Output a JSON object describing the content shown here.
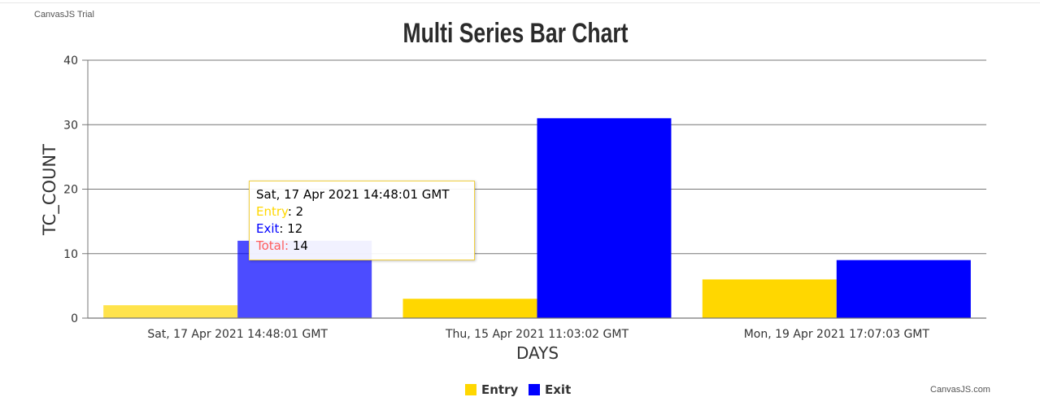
{
  "watermark": "CanvasJS Trial",
  "credit": "CanvasJS.com",
  "chart_data": {
    "type": "bar",
    "title": "Multi Series Bar Chart",
    "xlabel": "DAYS",
    "ylabel": "TC_COUNT",
    "ylim": [
      0,
      40
    ],
    "yticks": [
      0,
      10,
      20,
      30,
      40
    ],
    "grid": true,
    "legend_position": "bottom",
    "categories": [
      "Sat, 17 Apr 2021 14:48:01 GMT",
      "Thu, 15 Apr 2021 11:03:02 GMT",
      "Mon, 19 Apr 2021 17:07:03 GMT"
    ],
    "series": [
      {
        "name": "Entry",
        "color": "#ffd700",
        "values": [
          2,
          3,
          6
        ]
      },
      {
        "name": "Exit",
        "color": "#0000ff",
        "values": [
          12,
          31,
          9
        ]
      }
    ]
  },
  "tooltip": {
    "header": "Sat, 17 Apr 2021 14:48:01 GMT",
    "entry_label": "Entry",
    "entry_value": "2",
    "exit_label": "Exit",
    "exit_value": "12",
    "total_label": "Total:",
    "total_value": "14",
    "colors": {
      "entry": "#ffd700",
      "exit": "#0000ff",
      "total": "#ff5c5c"
    }
  }
}
